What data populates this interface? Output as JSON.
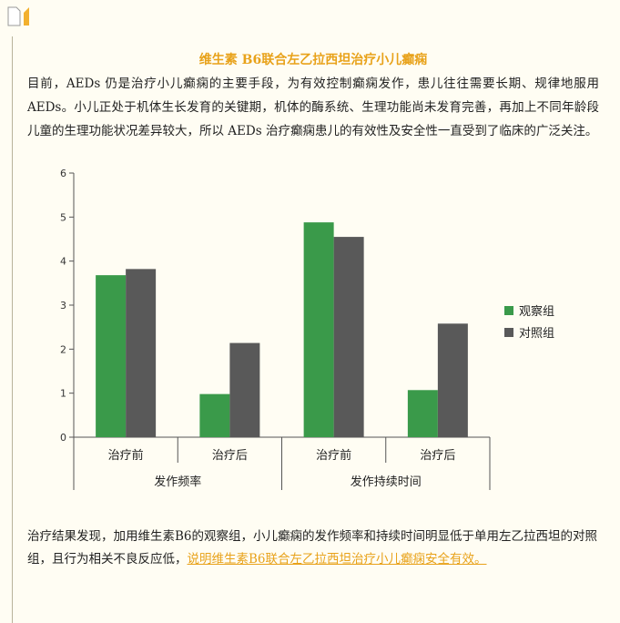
{
  "article": {
    "title": "维生素 B6联合左乙拉西坦治疗小儿癫痫",
    "intro": "目前，AEDs 仍是治疗小儿癫痫的主要手段，为有效控制癫痫发作，患儿往往需要长期、规律地服用 AEDs。小儿正处于机体生长发育的关键期，机体的酶系统、生理功能尚未发育完善，再加上不同年龄段儿童的生理功能状况差异较大，所以 AEDs 治疗癫痫患儿的有效性及安全性一直受到了临床的广泛关注。",
    "conclusion_text": "治疗结果发现，加用维生素B6的观察组，小儿癫痫的发作频率和持续时间明显低于单用左乙拉西坦的对照组，且行为相关不良反应低，",
    "conclusion_link": "说明维生素B6联合左乙拉西坦治疗小儿癫痫安全有效。"
  },
  "colors": {
    "title": "#e8a21a",
    "observation": "#3a9a4a",
    "control": "#595959",
    "axis": "#555555"
  },
  "chart_data": {
    "type": "bar",
    "categories": [
      "治疗前",
      "治疗后",
      "治疗前",
      "治疗后"
    ],
    "groups": [
      {
        "label": "发作频率",
        "span": [
          0,
          1
        ]
      },
      {
        "label": "发作持续时间",
        "span": [
          2,
          3
        ]
      }
    ],
    "series": [
      {
        "name": "观察组",
        "values": [
          3.68,
          0.98,
          4.88,
          1.07
        ]
      },
      {
        "name": "对照组",
        "values": [
          3.82,
          2.14,
          4.55,
          2.58
        ]
      }
    ],
    "yticks": [
      "0",
      "1",
      "2",
      "3",
      "4",
      "5",
      "6"
    ],
    "ylim": [
      0,
      6
    ],
    "legend_position": "right",
    "grid": false
  }
}
